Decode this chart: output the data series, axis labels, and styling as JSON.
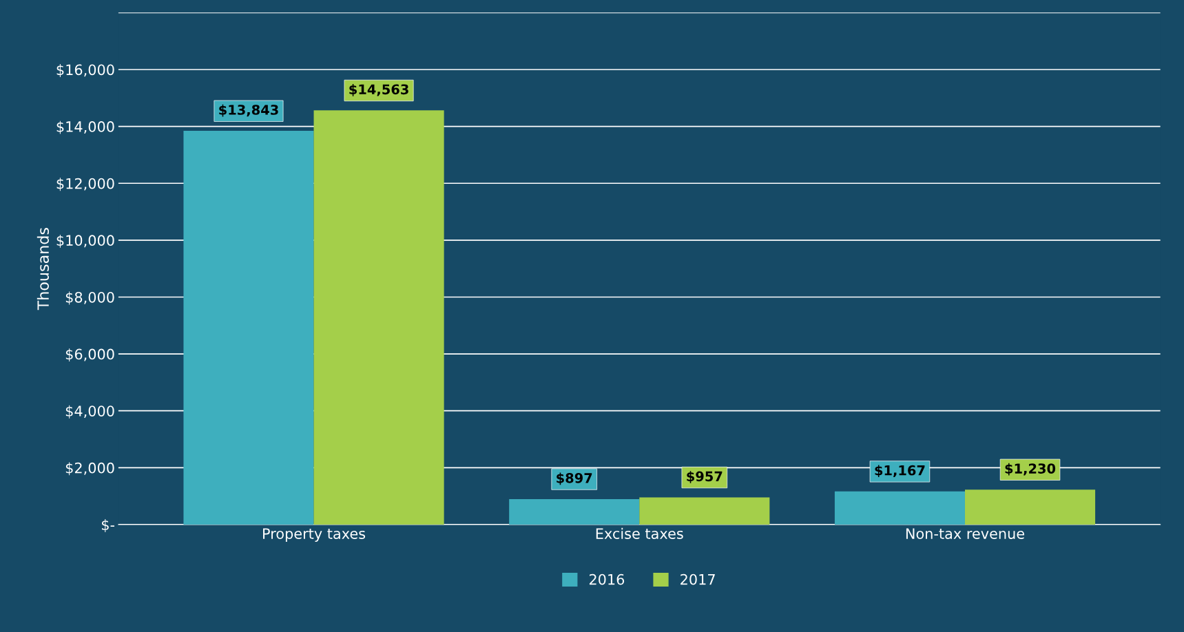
{
  "chart_data": {
    "type": "bar",
    "ylabel": "Thousands",
    "categories": [
      "Property taxes",
      "Excise taxes",
      "Non-tax revenue"
    ],
    "series": [
      {
        "name": "2016",
        "color": "#3eafbe",
        "values": [
          13843,
          897,
          1167
        ],
        "value_labels": [
          "$13,843",
          "$897",
          "$1,167"
        ]
      },
      {
        "name": "2017",
        "color": "#a4cf4a",
        "values": [
          14563,
          957,
          1230
        ],
        "value_labels": [
          "$14,563",
          "$957",
          "$1,230"
        ]
      }
    ],
    "ylim": [
      0,
      18000
    ],
    "yticks": [
      {
        "value": 0,
        "label": "$-"
      },
      {
        "value": 2000,
        "label": "$2,000"
      },
      {
        "value": 4000,
        "label": "$4,000"
      },
      {
        "value": 6000,
        "label": "$6,000"
      },
      {
        "value": 8000,
        "label": "$8,000"
      },
      {
        "value": 10000,
        "label": "$10,000"
      },
      {
        "value": 12000,
        "label": "$12,000"
      },
      {
        "value": 14000,
        "label": "$14,000"
      },
      {
        "value": 16000,
        "label": "$16,000"
      },
      {
        "value": 18000,
        "label": null
      }
    ],
    "grid": "y",
    "legend": "bottom"
  }
}
